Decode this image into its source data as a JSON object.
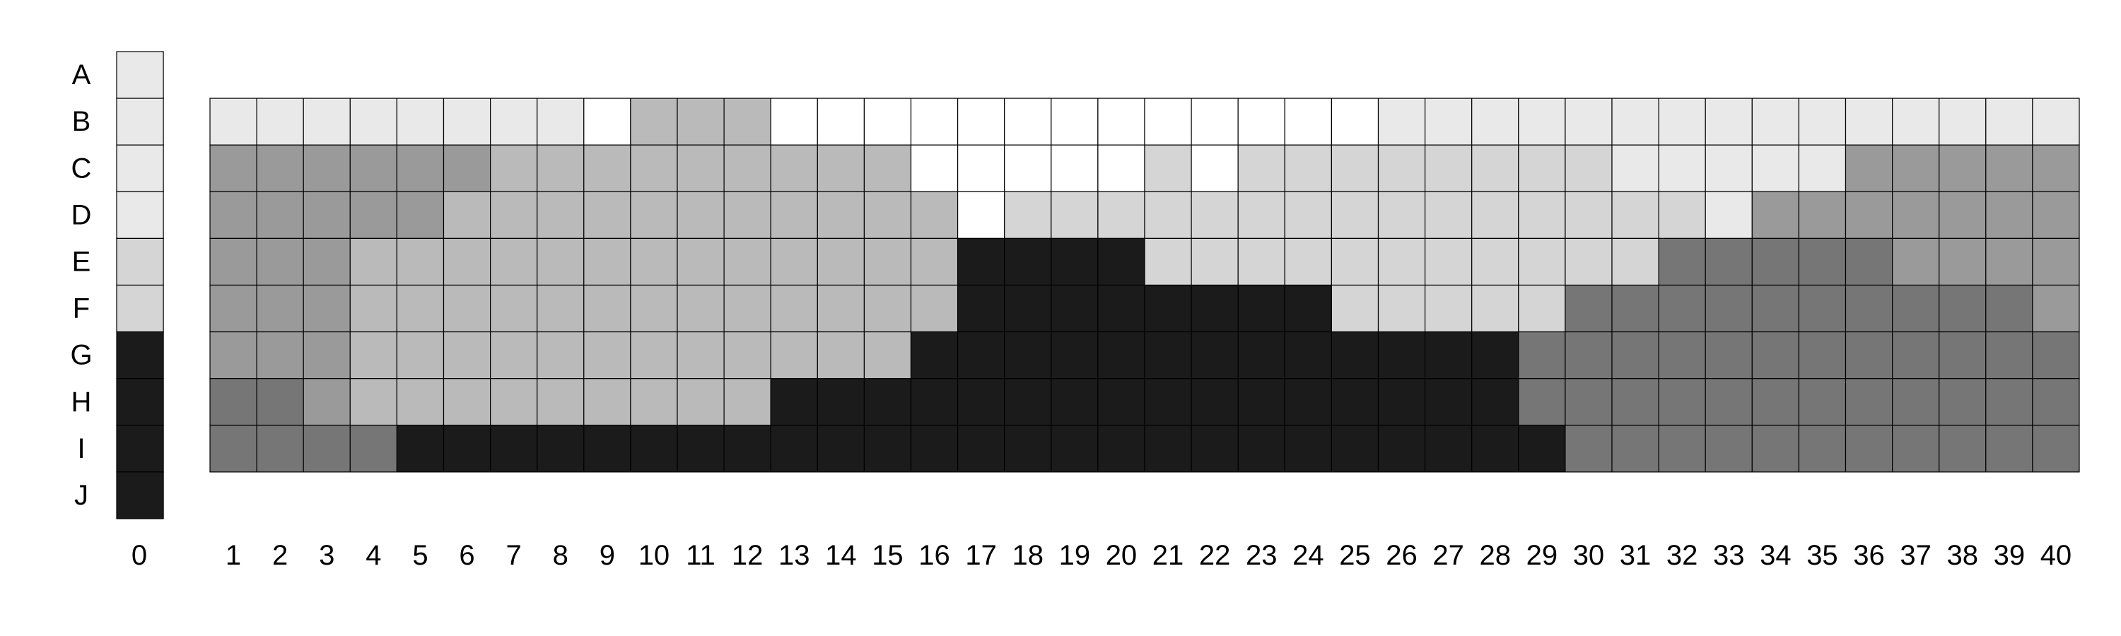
{
  "chart_data": {
    "type": "heatmap",
    "title": "",
    "xlabel": "",
    "ylabel": "",
    "rows": [
      "A",
      "B",
      "C",
      "D",
      "E",
      "F",
      "G",
      "H",
      "I",
      "J"
    ],
    "columns": [
      "0",
      "1",
      "2",
      "3",
      "4",
      "5",
      "6",
      "7",
      "8",
      "9",
      "10",
      "11",
      "12",
      "13",
      "14",
      "15",
      "16",
      "17",
      "18",
      "19",
      "20",
      "21",
      "22",
      "23",
      "24",
      "25",
      "26",
      "27",
      "28",
      "29",
      "30",
      "31",
      "32",
      "33",
      "34",
      "35",
      "36",
      "37",
      "38",
      "39",
      "40"
    ],
    "level_colors": [
      "#ffffff",
      "#e9e9e9",
      "#d5d5d5",
      "#bababa",
      "#9a9a9a",
      "#767676",
      "#1b1b1b"
    ],
    "reference_column": {
      "label": "0",
      "rows": [
        "A",
        "B",
        "C",
        "D",
        "E",
        "F",
        "G",
        "H",
        "I",
        "J"
      ],
      "levels": [
        1,
        1,
        1,
        1,
        2,
        2,
        6,
        6,
        6,
        6
      ]
    },
    "grid": {
      "rows": [
        "B",
        "C",
        "D",
        "E",
        "F",
        "G",
        "H",
        "I"
      ],
      "columns": [
        "1",
        "2",
        "3",
        "4",
        "5",
        "6",
        "7",
        "8",
        "9",
        "10",
        "11",
        "12",
        "13",
        "14",
        "15",
        "16",
        "17",
        "18",
        "19",
        "20",
        "21",
        "22",
        "23",
        "24",
        "25",
        "26",
        "27",
        "28",
        "29",
        "30",
        "31",
        "32",
        "33",
        "34",
        "35",
        "36",
        "37",
        "38",
        "39",
        "40"
      ],
      "levels": [
        [
          1,
          1,
          1,
          1,
          1,
          1,
          1,
          1,
          0,
          3,
          3,
          3,
          0,
          0,
          0,
          0,
          0,
          0,
          0,
          0,
          0,
          0,
          0,
          0,
          0,
          1,
          1,
          1,
          1,
          1,
          1,
          1,
          1,
          1,
          1,
          1,
          1,
          1,
          1,
          1
        ],
        [
          4,
          4,
          4,
          4,
          4,
          4,
          3,
          3,
          3,
          3,
          3,
          3,
          3,
          3,
          3,
          0,
          0,
          0,
          0,
          0,
          2,
          0,
          2,
          2,
          2,
          2,
          2,
          2,
          2,
          2,
          1,
          1,
          1,
          1,
          1,
          4,
          4,
          4,
          4,
          4
        ],
        [
          4,
          4,
          4,
          4,
          4,
          3,
          3,
          3,
          3,
          3,
          3,
          3,
          3,
          3,
          3,
          3,
          0,
          2,
          2,
          2,
          2,
          2,
          2,
          2,
          2,
          2,
          2,
          2,
          2,
          2,
          2,
          2,
          1,
          4,
          4,
          4,
          4,
          4,
          4,
          4
        ],
        [
          4,
          4,
          4,
          3,
          3,
          3,
          3,
          3,
          3,
          3,
          3,
          3,
          3,
          3,
          3,
          3,
          6,
          6,
          6,
          6,
          2,
          2,
          2,
          2,
          2,
          2,
          2,
          2,
          2,
          2,
          2,
          5,
          5,
          5,
          5,
          5,
          4,
          4,
          4,
          4
        ],
        [
          4,
          4,
          4,
          3,
          3,
          3,
          3,
          3,
          3,
          3,
          3,
          3,
          3,
          3,
          3,
          3,
          6,
          6,
          6,
          6,
          6,
          6,
          6,
          6,
          2,
          2,
          2,
          2,
          2,
          5,
          5,
          5,
          5,
          5,
          5,
          5,
          5,
          5,
          5,
          4
        ],
        [
          4,
          4,
          4,
          3,
          3,
          3,
          3,
          3,
          3,
          3,
          3,
          3,
          3,
          3,
          3,
          6,
          6,
          6,
          6,
          6,
          6,
          6,
          6,
          6,
          6,
          6,
          6,
          6,
          5,
          5,
          5,
          5,
          5,
          5,
          5,
          5,
          5,
          5,
          5,
          5
        ],
        [
          5,
          5,
          4,
          3,
          3,
          3,
          3,
          3,
          3,
          3,
          3,
          3,
          6,
          6,
          6,
          6,
          6,
          6,
          6,
          6,
          6,
          6,
          6,
          6,
          6,
          6,
          6,
          6,
          5,
          5,
          5,
          5,
          5,
          5,
          5,
          5,
          5,
          5,
          5,
          5
        ],
        [
          5,
          5,
          5,
          5,
          6,
          6,
          6,
          6,
          6,
          6,
          6,
          6,
          6,
          6,
          6,
          6,
          6,
          6,
          6,
          6,
          6,
          6,
          6,
          6,
          6,
          6,
          6,
          6,
          6,
          5,
          5,
          5,
          5,
          5,
          5,
          5,
          5,
          5,
          5,
          5
        ]
      ]
    }
  }
}
